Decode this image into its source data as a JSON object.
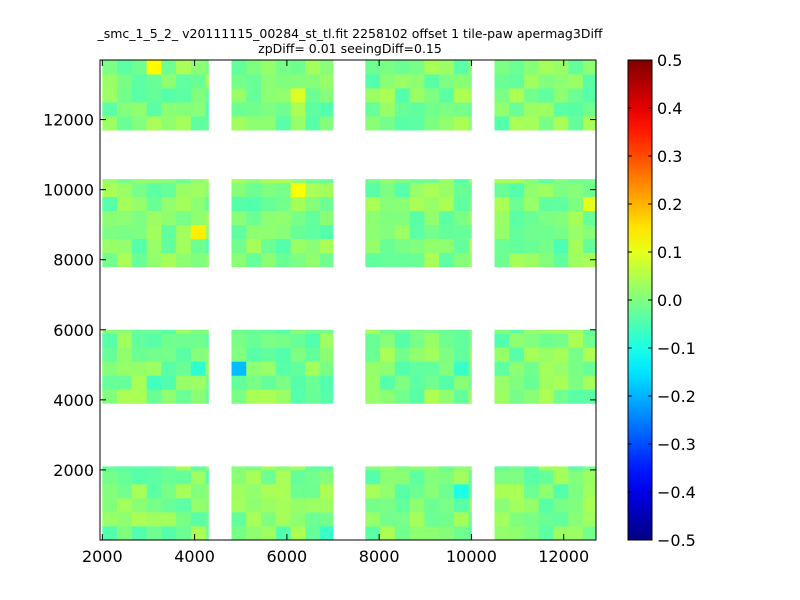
{
  "chart_data": {
    "type": "heatmap",
    "title": "_smc_1_5_2_ v20111115_00284_st_tl.fit 2258102 offset 1 tile-paw apermag3Diff",
    "subtitle": "zpDiff= 0.01 seeingDiff=0.15",
    "xlabel": "",
    "ylabel": "",
    "xlim": [
      1950,
      12700
    ],
    "ylim": [
      0,
      13700
    ],
    "x_ticks": [
      2000,
      4000,
      6000,
      8000,
      10000,
      12000
    ],
    "y_ticks": [
      2000,
      4000,
      6000,
      8000,
      10000,
      12000
    ],
    "colorbar": {
      "colormap": "jet",
      "range": [
        -0.5,
        0.5
      ],
      "ticks": [
        0.5,
        0.4,
        0.3,
        0.2,
        0.1,
        0.0,
        -0.1,
        -0.2,
        -0.3,
        -0.4,
        -0.5
      ],
      "tick_labels": [
        "0.5",
        "0.4",
        "0.3",
        "0.2",
        "0.1",
        "0.0",
        "−0.1",
        "−0.2",
        "−0.3",
        "−0.4",
        "−0.5"
      ]
    },
    "cell_size": [
      320,
      400
    ],
    "base_value": 0.0,
    "blocks": [
      {
        "x": [
          2000,
          4300
        ],
        "y": [
          0,
          2100
        ]
      },
      {
        "x": [
          4800,
          7000
        ],
        "y": [
          0,
          2100
        ]
      },
      {
        "x": [
          7700,
          10000
        ],
        "y": [
          0,
          2100
        ]
      },
      {
        "x": [
          10500,
          12700
        ],
        "y": [
          0,
          2100
        ]
      },
      {
        "x": [
          2000,
          4300
        ],
        "y": [
          3900,
          6000
        ]
      },
      {
        "x": [
          4800,
          7000
        ],
        "y": [
          3900,
          6000
        ]
      },
      {
        "x": [
          7700,
          10000
        ],
        "y": [
          3900,
          6000
        ]
      },
      {
        "x": [
          10500,
          12700
        ],
        "y": [
          3900,
          6000
        ]
      },
      {
        "x": [
          2000,
          4300
        ],
        "y": [
          7800,
          10300
        ]
      },
      {
        "x": [
          4800,
          7000
        ],
        "y": [
          7800,
          10300
        ]
      },
      {
        "x": [
          7700,
          10000
        ],
        "y": [
          7800,
          10300
        ]
      },
      {
        "x": [
          10500,
          12700
        ],
        "y": [
          7800,
          10300
        ]
      },
      {
        "x": [
          2000,
          4300
        ],
        "y": [
          11700,
          13700
        ]
      },
      {
        "x": [
          4800,
          7000
        ],
        "y": [
          11700,
          13700
        ]
      },
      {
        "x": [
          7700,
          10000
        ],
        "y": [
          11700,
          13700
        ]
      },
      {
        "x": [
          10500,
          12700
        ],
        "y": [
          11700,
          13700
        ]
      }
    ],
    "highlights": [
      {
        "x": 3100,
        "y": 13300,
        "value": 0.13
      },
      {
        "x": 6100,
        "y": 12700,
        "value": 0.09
      },
      {
        "x": 6100,
        "y": 10100,
        "value": 0.12
      },
      {
        "x": 4200,
        "y": 8900,
        "value": 0.14
      },
      {
        "x": 12500,
        "y": 9500,
        "value": 0.1
      },
      {
        "x": 4900,
        "y": 4900,
        "value": -0.19
      },
      {
        "x": 4200,
        "y": 4900,
        "value": -0.08
      },
      {
        "x": 9800,
        "y": 4900,
        "value": -0.07
      },
      {
        "x": 9900,
        "y": 1500,
        "value": -0.1
      },
      {
        "x": 6800,
        "y": 300,
        "value": -0.07
      },
      {
        "x": 3000,
        "y": 4500,
        "value": -0.06
      },
      {
        "x": 11900,
        "y": 8500,
        "value": -0.05
      }
    ]
  }
}
